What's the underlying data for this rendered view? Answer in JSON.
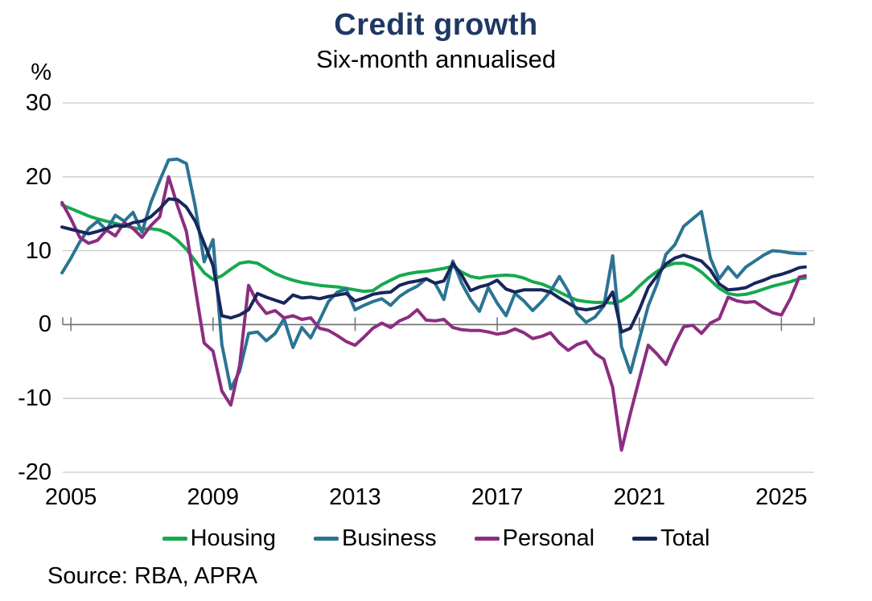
{
  "title": "Credit growth",
  "subtitle": "Six-month annualised",
  "unit_label": "%",
  "source": "Source: RBA, APRA",
  "colors": {
    "title": "#1f3864",
    "grid": "#c9c9c9",
    "zero_axis": "#6f6f6f",
    "tick": "#6f6f6f",
    "text": "#000000"
  },
  "chart_data": {
    "type": "line",
    "title": "Credit growth",
    "subtitle": "Six-month annualised",
    "ylabel": "%",
    "xlim": [
      2004.77,
      2025.92
    ],
    "ylim": [
      -20,
      30
    ],
    "xticks": [
      2005,
      2009,
      2013,
      2017,
      2021,
      2025
    ],
    "yticks": [
      30,
      20,
      10,
      0,
      -10,
      -20
    ],
    "grid": "horizontal",
    "legend_position": "bottom",
    "x": [
      2004.75,
      2005.0,
      2005.25,
      2005.5,
      2005.75,
      2006.0,
      2006.25,
      2006.5,
      2006.75,
      2007.0,
      2007.25,
      2007.5,
      2007.75,
      2008.0,
      2008.25,
      2008.5,
      2008.75,
      2009.0,
      2009.25,
      2009.5,
      2009.75,
      2010.0,
      2010.25,
      2010.5,
      2010.75,
      2011.0,
      2011.25,
      2011.5,
      2011.75,
      2012.0,
      2012.25,
      2012.5,
      2012.75,
      2013.0,
      2013.25,
      2013.5,
      2013.75,
      2014.0,
      2014.25,
      2014.5,
      2014.75,
      2015.0,
      2015.25,
      2015.5,
      2015.75,
      2016.0,
      2016.25,
      2016.5,
      2016.75,
      2017.0,
      2017.25,
      2017.5,
      2017.75,
      2018.0,
      2018.25,
      2018.5,
      2018.75,
      2019.0,
      2019.25,
      2019.5,
      2019.75,
      2020.0,
      2020.25,
      2020.5,
      2020.75,
      2021.0,
      2021.25,
      2021.5,
      2021.75,
      2022.0,
      2022.25,
      2022.5,
      2022.75,
      2023.0,
      2023.25,
      2023.5,
      2023.75,
      2024.0,
      2024.25,
      2024.5,
      2024.75,
      2025.0,
      2025.25,
      2025.5,
      2025.67
    ],
    "series": [
      {
        "name": "Housing",
        "color": "#16a94e",
        "values": [
          16.2,
          15.7,
          15.2,
          14.7,
          14.3,
          14.0,
          13.7,
          13.4,
          13.1,
          12.9,
          13.0,
          12.8,
          12.3,
          11.4,
          10.2,
          8.6,
          7.0,
          6.1,
          6.6,
          7.5,
          8.3,
          8.5,
          8.3,
          7.6,
          6.9,
          6.4,
          6.0,
          5.7,
          5.5,
          5.3,
          5.2,
          5.1,
          4.9,
          4.7,
          4.5,
          4.6,
          5.4,
          6.0,
          6.6,
          6.9,
          7.1,
          7.2,
          7.4,
          7.6,
          7.9,
          7.1,
          6.5,
          6.3,
          6.5,
          6.6,
          6.7,
          6.6,
          6.3,
          5.8,
          5.5,
          5.0,
          4.4,
          3.8,
          3.3,
          3.1,
          3.0,
          3.0,
          2.9,
          3.2,
          4.0,
          5.2,
          6.3,
          7.2,
          7.9,
          8.3,
          8.3,
          7.9,
          7.1,
          6.0,
          4.9,
          4.2,
          4.0,
          4.1,
          4.4,
          4.8,
          5.2,
          5.5,
          5.8,
          6.2,
          6.3
        ]
      },
      {
        "name": "Business",
        "color": "#2b7493",
        "values": [
          7.0,
          9.0,
          11.2,
          13.0,
          14.0,
          12.8,
          14.8,
          14.0,
          15.2,
          12.5,
          16.5,
          19.5,
          22.3,
          22.4,
          21.8,
          16.0,
          8.5,
          11.5,
          -2.7,
          -8.7,
          -6.3,
          -1.2,
          -1.0,
          -2.2,
          -1.2,
          0.8,
          -3.1,
          -0.4,
          -1.8,
          0.6,
          3.1,
          4.4,
          4.8,
          2.0,
          2.6,
          3.1,
          3.5,
          2.6,
          3.8,
          4.6,
          5.2,
          6.2,
          5.6,
          3.4,
          8.6,
          5.6,
          3.4,
          1.8,
          5.0,
          2.9,
          1.2,
          4.2,
          3.2,
          1.9,
          3.1,
          4.5,
          6.5,
          4.5,
          1.5,
          0.3,
          1.0,
          2.5,
          9.3,
          -3.0,
          -6.5,
          -2.0,
          2.5,
          5.5,
          9.5,
          10.8,
          13.3,
          14.3,
          15.3,
          9.0,
          6.2,
          7.8,
          6.4,
          7.8,
          8.6,
          9.4,
          10.0,
          9.9,
          9.7,
          9.6,
          9.6
        ]
      },
      {
        "name": "Personal",
        "color": "#8c2d80",
        "values": [
          16.5,
          14.3,
          11.8,
          11.0,
          11.4,
          12.8,
          12.0,
          13.8,
          13.0,
          11.8,
          13.4,
          14.6,
          20.0,
          16.1,
          12.6,
          5.0,
          -2.5,
          -3.6,
          -9.0,
          -10.9,
          -5.5,
          5.3,
          3.0,
          1.5,
          1.9,
          0.9,
          1.2,
          0.7,
          0.9,
          -0.5,
          -0.8,
          -1.5,
          -2.3,
          -2.8,
          -1.7,
          -0.5,
          0.2,
          -0.4,
          0.5,
          1.0,
          2.0,
          0.6,
          0.5,
          0.7,
          -0.4,
          -0.7,
          -0.8,
          -0.8,
          -1.0,
          -1.3,
          -1.1,
          -0.6,
          -1.1,
          -1.9,
          -1.6,
          -1.1,
          -2.5,
          -3.5,
          -2.7,
          -2.3,
          -3.9,
          -4.7,
          -8.5,
          -17.0,
          -12.0,
          -7.4,
          -2.8,
          -4.0,
          -5.4,
          -2.6,
          -0.3,
          -0.1,
          -1.2,
          0.2,
          0.8,
          3.7,
          3.2,
          3.0,
          3.1,
          2.3,
          1.6,
          1.3,
          3.5,
          6.4,
          6.6
        ]
      },
      {
        "name": "Total",
        "color": "#17265c",
        "values": [
          13.2,
          12.9,
          12.6,
          12.3,
          12.6,
          13.0,
          13.4,
          13.3,
          13.8,
          14.0,
          14.6,
          15.7,
          17.0,
          16.9,
          15.9,
          14.0,
          11.0,
          8.0,
          1.2,
          0.9,
          1.3,
          2.0,
          4.2,
          3.7,
          3.3,
          2.9,
          4.0,
          3.6,
          3.7,
          3.5,
          3.8,
          4.0,
          4.2,
          3.2,
          3.6,
          4.1,
          4.3,
          4.4,
          5.3,
          5.7,
          5.9,
          6.2,
          5.6,
          5.9,
          8.3,
          6.7,
          4.6,
          5.1,
          5.4,
          6.0,
          4.8,
          4.4,
          4.7,
          4.7,
          4.7,
          4.4,
          3.6,
          2.9,
          2.2,
          2.0,
          2.2,
          2.6,
          4.4,
          -1.0,
          -0.5,
          2.0,
          5.0,
          6.6,
          8.2,
          9.0,
          9.4,
          9.0,
          8.6,
          7.4,
          5.5,
          4.7,
          4.8,
          5.0,
          5.6,
          6.0,
          6.5,
          6.8,
          7.2,
          7.7,
          7.8
        ]
      }
    ]
  }
}
